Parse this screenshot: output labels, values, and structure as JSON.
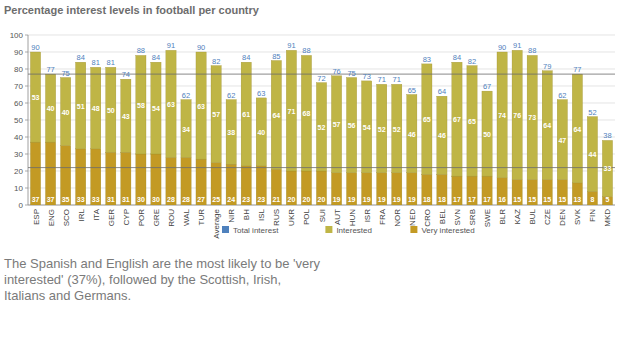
{
  "chart_data": {
    "type": "bar",
    "title": "Percentage interest levels in football per country",
    "caption": "The Spanish and English are the most likely to be 'very interested' (37%), followed by the Scottish, Irish, Italians and Germans.",
    "categories": [
      "ESP",
      "ENG",
      "SCO",
      "IRL",
      "ITA",
      "GER",
      "CYP",
      "POR",
      "GRE",
      "ROU",
      "WAL",
      "TUR",
      "Average",
      "NIR",
      "BH",
      "ISL",
      "RUS",
      "UKR",
      "POL",
      "SUI",
      "AUT",
      "HUN",
      "ISR",
      "FRA",
      "NOR",
      "NED",
      "CRO",
      "BEL",
      "SVN",
      "SRB",
      "SWE",
      "BLR",
      "KAZ",
      "BUL",
      "CZE",
      "DEN",
      "SVK",
      "FIN",
      "MKD"
    ],
    "series": [
      {
        "name": "Total interest",
        "type": "text",
        "color": "#4f81bd",
        "values": [
          90,
          77,
          75,
          84,
          81,
          81,
          74,
          88,
          84,
          91,
          62,
          90,
          82,
          62,
          84,
          63,
          85,
          91,
          88,
          72,
          76,
          75,
          73,
          71,
          71,
          65,
          83,
          64,
          84,
          82,
          67,
          90,
          91,
          88,
          79,
          62,
          77,
          52,
          38
        ]
      },
      {
        "name": "Interested",
        "type": "bar",
        "color": "#bfb546",
        "values": [
          53,
          40,
          40,
          51,
          48,
          50,
          43,
          58,
          54,
          63,
          34,
          63,
          57,
          38,
          61,
          40,
          64,
          71,
          68,
          52,
          57,
          56,
          54,
          52,
          52,
          46,
          65,
          46,
          67,
          65,
          50,
          74,
          76,
          73,
          64,
          47,
          64,
          44,
          33
        ]
      },
      {
        "name": "Very interested",
        "type": "bar",
        "color": "#c39a24",
        "values": [
          37,
          37,
          35,
          33,
          33,
          31,
          31,
          30,
          30,
          28,
          28,
          27,
          25,
          24,
          23,
          23,
          21,
          20,
          20,
          20,
          19,
          19,
          19,
          19,
          19,
          19,
          18,
          18,
          17,
          17,
          17,
          16,
          15,
          15,
          15,
          15,
          13,
          8,
          5
        ]
      }
    ],
    "stacked": true,
    "data_labels": true,
    "grid": true,
    "legend": "bottom",
    "reference_lines": [
      77,
      22
    ],
    "ylim": [
      0,
      100
    ],
    "yticks": [
      0,
      10,
      20,
      30,
      40,
      50,
      60,
      70,
      80,
      90,
      100
    ]
  }
}
